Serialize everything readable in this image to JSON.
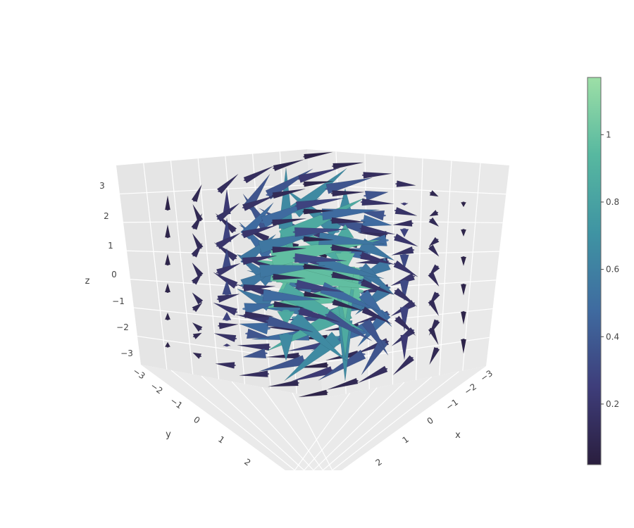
{
  "chart_data": {
    "type": "cone",
    "title": "",
    "axes": {
      "x": {
        "title": "x",
        "ticks": [
          "−3",
          "−2",
          "−1",
          "0",
          "1",
          "2"
        ]
      },
      "y": {
        "title": "y",
        "ticks": [
          "−3",
          "−2",
          "−1",
          "0",
          "1",
          "2"
        ]
      },
      "z": {
        "title": "z",
        "ticks": [
          "3",
          "2",
          "1",
          "0",
          "−1",
          "−2",
          "−3"
        ]
      }
    },
    "ranges": {
      "x": [
        -3,
        3
      ],
      "y": [
        -3,
        3
      ],
      "z": [
        -3,
        3
      ]
    },
    "grid": true,
    "colorbar": {
      "colorscale": [
        "#2a1e3e",
        "#3e3d7a",
        "#3f6ba0",
        "#3f94a3",
        "#57b8a0",
        "#9ddfa6"
      ],
      "range": [
        0.02,
        1.17
      ],
      "ticks": [
        "1",
        "0.8",
        "0.6",
        "0.4",
        "0.2"
      ],
      "tick_values": [
        1.0,
        0.8,
        0.6,
        0.4,
        0.2
      ]
    },
    "field": {
      "description_of_grid": "cones on a 3D lattice, vector field rotating about the z-axis with magnitude peaking near the center",
      "grid_values": [
        -2.5,
        -1.5,
        -0.5,
        0.5,
        1.5,
        2.5
      ]
    }
  }
}
